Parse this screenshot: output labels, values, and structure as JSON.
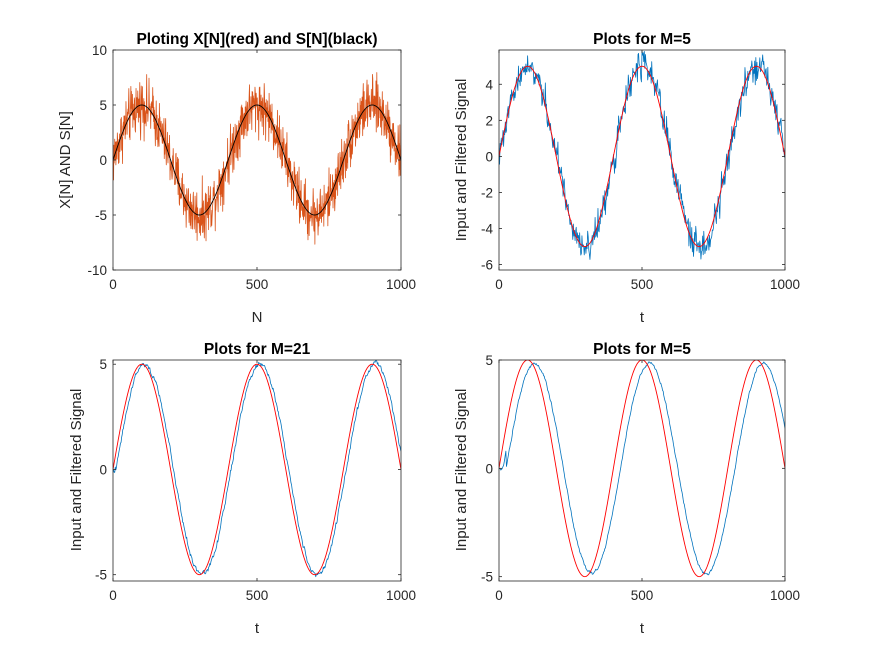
{
  "figure": {
    "background": "#ffffff"
  },
  "colors": {
    "noisy": "#d95319",
    "clean": "#000000",
    "reference": "#ff0000",
    "filtered": "#0072bd",
    "axis": "#262626"
  },
  "chart_data": [
    {
      "id": "ax1",
      "type": "line",
      "title": "Ploting X[N](red) and S[N](black)",
      "xlabel": "N",
      "ylabel": "X[N] AND S[N]",
      "xlim": [
        0,
        1000
      ],
      "ylim": [
        -10,
        10
      ],
      "xticks": [
        0,
        500,
        1000
      ],
      "yticks": [
        -10,
        -5,
        0,
        5,
        10
      ],
      "grid": false,
      "series": [
        {
          "role": "noisy",
          "color": "#d95319",
          "signal": {
            "amplitude": 5,
            "period": 400,
            "noise": 1.2,
            "lag": 0,
            "offset": 0
          }
        },
        {
          "role": "clean",
          "color": "#000000",
          "signal": {
            "amplitude": 5,
            "period": 400,
            "noise": 0,
            "lag": 0,
            "offset": 0
          }
        }
      ]
    },
    {
      "id": "ax2",
      "type": "line",
      "title": "Plots for M=5",
      "xlabel": "t",
      "ylabel": "Input and Filtered Signal",
      "xlim": [
        0,
        1000
      ],
      "ylim": [
        -6.3,
        5.9
      ],
      "xticks": [
        0,
        500,
        1000
      ],
      "yticks": [
        -6,
        -4,
        -2,
        0,
        2,
        4
      ],
      "grid": false,
      "series": [
        {
          "role": "filtered",
          "color": "#0072bd",
          "signal": {
            "amplitude": 5,
            "period": 400,
            "noise": 0.45,
            "lag": 2,
            "offset": 0
          }
        },
        {
          "role": "reference",
          "color": "#ff0000",
          "signal": {
            "amplitude": 5,
            "period": 400,
            "noise": 0,
            "lag": 0,
            "offset": 0
          }
        }
      ]
    },
    {
      "id": "ax3",
      "type": "line",
      "title": "Plots for M=21",
      "xlabel": "t",
      "ylabel": "Input and Filtered Signal",
      "xlim": [
        0,
        1000
      ],
      "ylim": [
        -5.3,
        5.2
      ],
      "xticks": [
        0,
        500,
        1000
      ],
      "yticks": [
        -5,
        0,
        5
      ],
      "grid": false,
      "series": [
        {
          "role": "filtered",
          "color": "#0072bd",
          "signal": {
            "amplitude": 5,
            "period": 400,
            "noise": 0.15,
            "lag": 10,
            "offset": 0
          }
        },
        {
          "role": "reference",
          "color": "#ff0000",
          "signal": {
            "amplitude": 5,
            "period": 400,
            "noise": 0,
            "lag": 0,
            "offset": 0
          }
        }
      ]
    },
    {
      "id": "ax4",
      "type": "line",
      "title": "Plots for M=5",
      "xlabel": "t",
      "ylabel": "Input and Filtered Signal",
      "xlim": [
        0,
        1000
      ],
      "ylim": [
        -5.2,
        5.0
      ],
      "xticks": [
        0,
        500,
        1000
      ],
      "yticks": [
        -5,
        0,
        5
      ],
      "grid": false,
      "series": [
        {
          "role": "filtered",
          "color": "#0072bd",
          "signal": {
            "amplitude": 4.85,
            "period": 400,
            "noise": 0.08,
            "lag": 25,
            "offset": 0
          }
        },
        {
          "role": "reference",
          "color": "#ff0000",
          "signal": {
            "amplitude": 5,
            "period": 400,
            "noise": 0,
            "lag": 0,
            "offset": 0
          }
        }
      ]
    }
  ]
}
